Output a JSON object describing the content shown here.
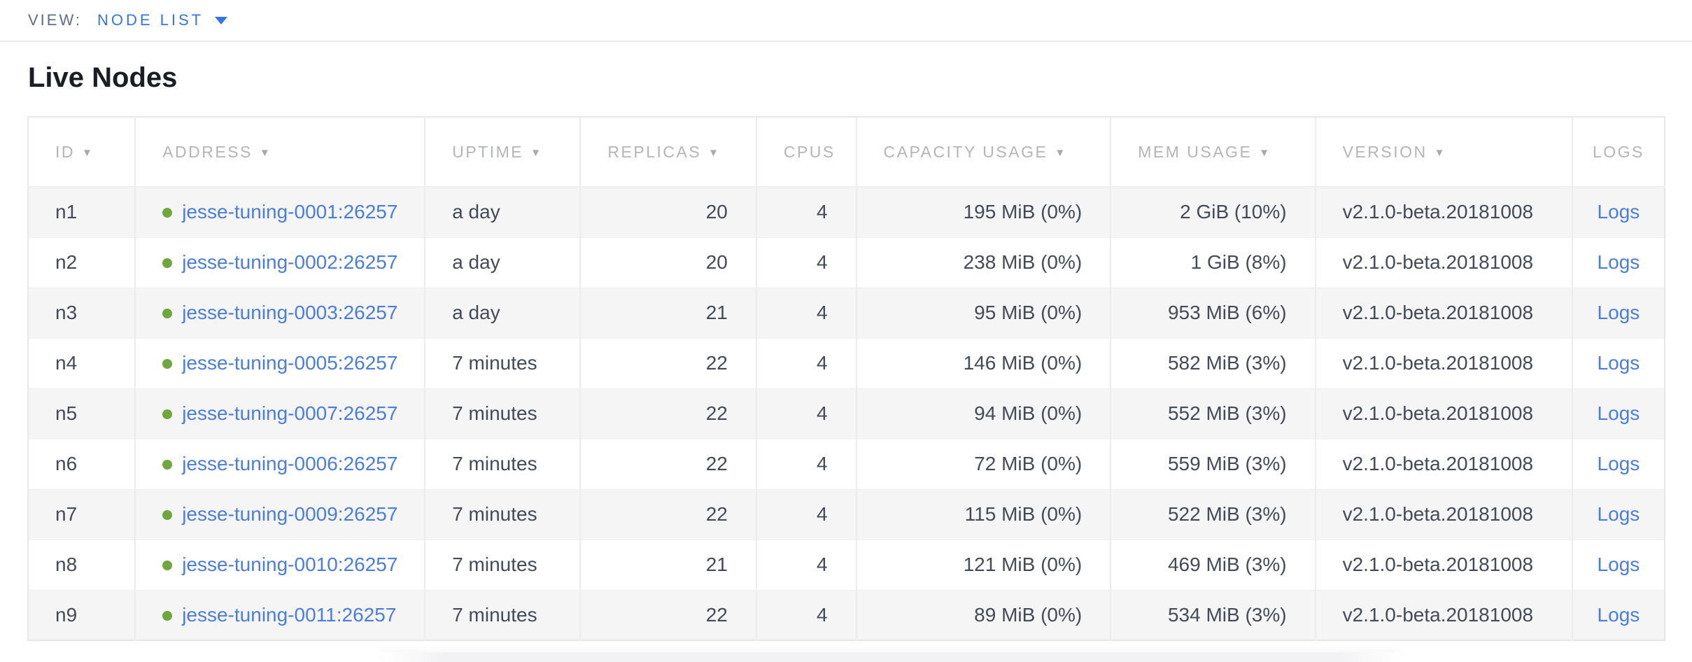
{
  "view_bar": {
    "label": "VIEW:",
    "selected": "NODE LIST"
  },
  "page": {
    "title": "Live Nodes"
  },
  "icons": {
    "sort_arrow": "▼"
  },
  "colors": {
    "link_blue": "#4a7de2",
    "accent_blue": "#3377e6",
    "status_live_green": "#70a63d",
    "header_gray": "#b3b5b9",
    "row_alt_gray": "#f5f5f6"
  },
  "table": {
    "columns": [
      {
        "key": "id",
        "label": "ID",
        "sortable": true
      },
      {
        "key": "address",
        "label": "ADDRESS",
        "sortable": true
      },
      {
        "key": "uptime",
        "label": "UPTIME",
        "sortable": true
      },
      {
        "key": "replicas",
        "label": "REPLICAS",
        "sortable": true
      },
      {
        "key": "cpus",
        "label": "CPUS",
        "sortable": false
      },
      {
        "key": "capacity",
        "label": "CAPACITY USAGE",
        "sortable": true
      },
      {
        "key": "mem",
        "label": "MEM USAGE",
        "sortable": true
      },
      {
        "key": "version",
        "label": "VERSION",
        "sortable": true
      },
      {
        "key": "logs",
        "label": "LOGS",
        "sortable": false
      }
    ],
    "rows": [
      {
        "id": "n1",
        "address": "jesse-tuning-0001:26257",
        "status": "live",
        "uptime": "a day",
        "replicas": "20",
        "cpus": "4",
        "capacity": "195 MiB (0%)",
        "mem": "2 GiB (10%)",
        "version": "v2.1.0-beta.20181008",
        "logs": "Logs"
      },
      {
        "id": "n2",
        "address": "jesse-tuning-0002:26257",
        "status": "live",
        "uptime": "a day",
        "replicas": "20",
        "cpus": "4",
        "capacity": "238 MiB (0%)",
        "mem": "1 GiB (8%)",
        "version": "v2.1.0-beta.20181008",
        "logs": "Logs"
      },
      {
        "id": "n3",
        "address": "jesse-tuning-0003:26257",
        "status": "live",
        "uptime": "a day",
        "replicas": "21",
        "cpus": "4",
        "capacity": "95 MiB (0%)",
        "mem": "953 MiB (6%)",
        "version": "v2.1.0-beta.20181008",
        "logs": "Logs"
      },
      {
        "id": "n4",
        "address": "jesse-tuning-0005:26257",
        "status": "live",
        "uptime": "7 minutes",
        "replicas": "22",
        "cpus": "4",
        "capacity": "146 MiB (0%)",
        "mem": "582 MiB (3%)",
        "version": "v2.1.0-beta.20181008",
        "logs": "Logs"
      },
      {
        "id": "n5",
        "address": "jesse-tuning-0007:26257",
        "status": "live",
        "uptime": "7 minutes",
        "replicas": "22",
        "cpus": "4",
        "capacity": "94 MiB (0%)",
        "mem": "552 MiB (3%)",
        "version": "v2.1.0-beta.20181008",
        "logs": "Logs"
      },
      {
        "id": "n6",
        "address": "jesse-tuning-0006:26257",
        "status": "live",
        "uptime": "7 minutes",
        "replicas": "22",
        "cpus": "4",
        "capacity": "72 MiB (0%)",
        "mem": "559 MiB (3%)",
        "version": "v2.1.0-beta.20181008",
        "logs": "Logs"
      },
      {
        "id": "n7",
        "address": "jesse-tuning-0009:26257",
        "status": "live",
        "uptime": "7 minutes",
        "replicas": "22",
        "cpus": "4",
        "capacity": "115 MiB (0%)",
        "mem": "522 MiB (3%)",
        "version": "v2.1.0-beta.20181008",
        "logs": "Logs"
      },
      {
        "id": "n8",
        "address": "jesse-tuning-0010:26257",
        "status": "live",
        "uptime": "7 minutes",
        "replicas": "21",
        "cpus": "4",
        "capacity": "121 MiB (0%)",
        "mem": "469 MiB (3%)",
        "version": "v2.1.0-beta.20181008",
        "logs": "Logs"
      },
      {
        "id": "n9",
        "address": "jesse-tuning-0011:26257",
        "status": "live",
        "uptime": "7 minutes",
        "replicas": "22",
        "cpus": "4",
        "capacity": "89 MiB (0%)",
        "mem": "534 MiB (3%)",
        "version": "v2.1.0-beta.20181008",
        "logs": "Logs"
      }
    ]
  }
}
